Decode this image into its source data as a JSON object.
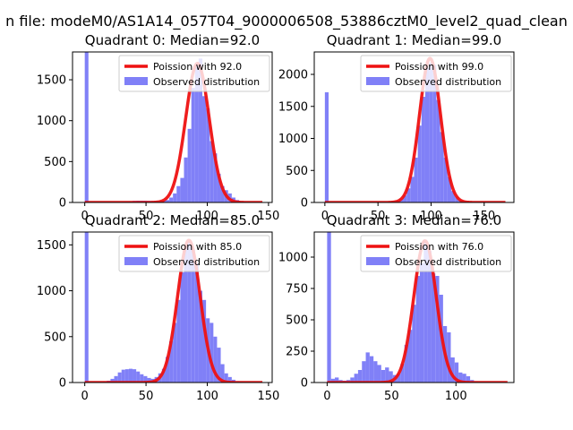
{
  "suptitle": "n file: modeM0/AS1A14_057T04_9000006508_53886cztM0_level2_quad_clean",
  "colors": {
    "hist": "#8080f7",
    "fit": "#ee1111",
    "axis": "#000000"
  },
  "chart_data": [
    {
      "type": "bar",
      "title": "Quadrant 0: Median=92.0",
      "median": 92.0,
      "xlim": [
        -10,
        153
      ],
      "ylim": [
        0,
        1840
      ],
      "xticks": [
        0,
        50,
        100,
        150
      ],
      "yticks": [
        0,
        500,
        1000,
        1500
      ],
      "bin_width": 3,
      "bins": [
        {
          "x": 0,
          "y": 1840
        },
        {
          "x": 3,
          "y": 3
        },
        {
          "x": 6,
          "y": 3
        },
        {
          "x": 9,
          "y": 3
        },
        {
          "x": 12,
          "y": 3
        },
        {
          "x": 15,
          "y": 4
        },
        {
          "x": 18,
          "y": 4
        },
        {
          "x": 21,
          "y": 4
        },
        {
          "x": 24,
          "y": 5
        },
        {
          "x": 27,
          "y": 6
        },
        {
          "x": 30,
          "y": 8
        },
        {
          "x": 33,
          "y": 12
        },
        {
          "x": 36,
          "y": 15
        },
        {
          "x": 39,
          "y": 20
        },
        {
          "x": 42,
          "y": 22
        },
        {
          "x": 45,
          "y": 22
        },
        {
          "x": 48,
          "y": 22
        },
        {
          "x": 51,
          "y": 20
        },
        {
          "x": 54,
          "y": 18
        },
        {
          "x": 57,
          "y": 15
        },
        {
          "x": 60,
          "y": 15
        },
        {
          "x": 63,
          "y": 20
        },
        {
          "x": 66,
          "y": 30
        },
        {
          "x": 69,
          "y": 60
        },
        {
          "x": 72,
          "y": 110
        },
        {
          "x": 75,
          "y": 200
        },
        {
          "x": 78,
          "y": 300
        },
        {
          "x": 81,
          "y": 550
        },
        {
          "x": 84,
          "y": 900
        },
        {
          "x": 87,
          "y": 1400
        },
        {
          "x": 90,
          "y": 1700
        },
        {
          "x": 93,
          "y": 1760
        },
        {
          "x": 96,
          "y": 1300
        },
        {
          "x": 99,
          "y": 1150
        },
        {
          "x": 102,
          "y": 750
        },
        {
          "x": 105,
          "y": 600
        },
        {
          "x": 108,
          "y": 350
        },
        {
          "x": 111,
          "y": 200
        },
        {
          "x": 114,
          "y": 150
        },
        {
          "x": 117,
          "y": 110
        },
        {
          "x": 120,
          "y": 60
        },
        {
          "x": 123,
          "y": 30
        },
        {
          "x": 126,
          "y": 15
        },
        {
          "x": 129,
          "y": 10
        },
        {
          "x": 132,
          "y": 5
        },
        {
          "x": 135,
          "y": 4
        },
        {
          "x": 138,
          "y": 3
        },
        {
          "x": 141,
          "y": 2
        },
        {
          "x": 144,
          "y": 2
        }
      ],
      "fit": {
        "mean": 92.0,
        "amplitude": 1700,
        "x_range": [
          0,
          145
        ]
      },
      "legend": {
        "location": "upper right",
        "entries": [
          "Poission with 92.0",
          "Observed distribution"
        ]
      }
    },
    {
      "type": "bar",
      "title": "Quadrant 1: Median=99.0",
      "median": 99.0,
      "xlim": [
        -10,
        178
      ],
      "ylim": [
        0,
        2350
      ],
      "xticks": [
        0,
        50,
        100,
        150
      ],
      "yticks": [
        0,
        500,
        1000,
        1500,
        2000
      ],
      "bin_width": 3.5,
      "bins": [
        {
          "x": 0,
          "y": 1720
        },
        {
          "x": 3.5,
          "y": 3
        },
        {
          "x": 7,
          "y": 3
        },
        {
          "x": 10.5,
          "y": 3
        },
        {
          "x": 14,
          "y": 3
        },
        {
          "x": 17.5,
          "y": 3
        },
        {
          "x": 21,
          "y": 4
        },
        {
          "x": 24.5,
          "y": 4
        },
        {
          "x": 28,
          "y": 4
        },
        {
          "x": 31.5,
          "y": 4
        },
        {
          "x": 35,
          "y": 5
        },
        {
          "x": 38.5,
          "y": 5
        },
        {
          "x": 42,
          "y": 5
        },
        {
          "x": 45.5,
          "y": 6
        },
        {
          "x": 49,
          "y": 6
        },
        {
          "x": 52.5,
          "y": 6
        },
        {
          "x": 56,
          "y": 8
        },
        {
          "x": 59.5,
          "y": 10
        },
        {
          "x": 63,
          "y": 15
        },
        {
          "x": 66.5,
          "y": 25
        },
        {
          "x": 70,
          "y": 50
        },
        {
          "x": 73.5,
          "y": 110
        },
        {
          "x": 77,
          "y": 220
        },
        {
          "x": 80.5,
          "y": 400
        },
        {
          "x": 84,
          "y": 700
        },
        {
          "x": 87.5,
          "y": 1200
        },
        {
          "x": 91,
          "y": 1650
        },
        {
          "x": 94.5,
          "y": 2100
        },
        {
          "x": 98,
          "y": 2180
        },
        {
          "x": 101.5,
          "y": 2150
        },
        {
          "x": 105,
          "y": 1600
        },
        {
          "x": 108.5,
          "y": 1100
        },
        {
          "x": 112,
          "y": 700
        },
        {
          "x": 115.5,
          "y": 400
        },
        {
          "x": 119,
          "y": 180
        },
        {
          "x": 122.5,
          "y": 90
        },
        {
          "x": 126,
          "y": 40
        },
        {
          "x": 129.5,
          "y": 20
        },
        {
          "x": 133,
          "y": 10
        },
        {
          "x": 136.5,
          "y": 6
        },
        {
          "x": 140,
          "y": 4
        },
        {
          "x": 143.5,
          "y": 3
        },
        {
          "x": 147,
          "y": 3
        },
        {
          "x": 150.5,
          "y": 2
        },
        {
          "x": 154,
          "y": 2
        },
        {
          "x": 157.5,
          "y": 2
        },
        {
          "x": 161,
          "y": 2
        },
        {
          "x": 164.5,
          "y": 2
        }
      ],
      "fit": {
        "mean": 99.0,
        "amplitude": 2250,
        "x_range": [
          0,
          170
        ]
      },
      "legend": {
        "location": "upper right",
        "entries": [
          "Poission with 99.0",
          "Observed distribution"
        ]
      }
    },
    {
      "type": "bar",
      "title": "Quadrant 2: Median=85.0",
      "median": 85.0,
      "xlim": [
        -10,
        153
      ],
      "ylim": [
        0,
        1640
      ],
      "xticks": [
        0,
        50,
        100,
        150
      ],
      "yticks": [
        0,
        500,
        1000,
        1500
      ],
      "bin_width": 3,
      "bins": [
        {
          "x": 0,
          "y": 1640
        },
        {
          "x": 3,
          "y": 3
        },
        {
          "x": 6,
          "y": 3
        },
        {
          "x": 9,
          "y": 3
        },
        {
          "x": 12,
          "y": 5
        },
        {
          "x": 15,
          "y": 10
        },
        {
          "x": 18,
          "y": 20
        },
        {
          "x": 21,
          "y": 40
        },
        {
          "x": 24,
          "y": 70
        },
        {
          "x": 27,
          "y": 110
        },
        {
          "x": 30,
          "y": 140
        },
        {
          "x": 33,
          "y": 145
        },
        {
          "x": 36,
          "y": 150
        },
        {
          "x": 39,
          "y": 145
        },
        {
          "x": 42,
          "y": 120
        },
        {
          "x": 45,
          "y": 90
        },
        {
          "x": 48,
          "y": 70
        },
        {
          "x": 51,
          "y": 50
        },
        {
          "x": 54,
          "y": 40
        },
        {
          "x": 57,
          "y": 60
        },
        {
          "x": 60,
          "y": 100
        },
        {
          "x": 63,
          "y": 150
        },
        {
          "x": 66,
          "y": 280
        },
        {
          "x": 69,
          "y": 450
        },
        {
          "x": 72,
          "y": 650
        },
        {
          "x": 75,
          "y": 900
        },
        {
          "x": 78,
          "y": 1200
        },
        {
          "x": 81,
          "y": 1500
        },
        {
          "x": 84,
          "y": 1550
        },
        {
          "x": 87,
          "y": 1450
        },
        {
          "x": 90,
          "y": 1300
        },
        {
          "x": 93,
          "y": 1000
        },
        {
          "x": 96,
          "y": 900
        },
        {
          "x": 99,
          "y": 700
        },
        {
          "x": 102,
          "y": 650
        },
        {
          "x": 105,
          "y": 500
        },
        {
          "x": 108,
          "y": 380
        },
        {
          "x": 111,
          "y": 200
        },
        {
          "x": 114,
          "y": 100
        },
        {
          "x": 117,
          "y": 60
        },
        {
          "x": 120,
          "y": 30
        },
        {
          "x": 123,
          "y": 15
        },
        {
          "x": 126,
          "y": 10
        },
        {
          "x": 129,
          "y": 5
        },
        {
          "x": 132,
          "y": 3
        },
        {
          "x": 135,
          "y": 2
        },
        {
          "x": 138,
          "y": 2
        },
        {
          "x": 141,
          "y": 2
        }
      ],
      "fit": {
        "mean": 85.0,
        "amplitude": 1550,
        "x_range": [
          0,
          145
        ]
      },
      "legend": {
        "location": "upper right",
        "entries": [
          "Poission with 85.0",
          "Observed distribution"
        ]
      }
    },
    {
      "type": "bar",
      "title": "Quadrant 3: Median=76.0",
      "median": 76.0,
      "xlim": [
        -10,
        145
      ],
      "ylim": [
        0,
        1200
      ],
      "xticks": [
        0,
        50,
        100
      ],
      "yticks": [
        0,
        250,
        500,
        750,
        1000
      ],
      "bin_width": 3,
      "bins": [
        {
          "x": 0,
          "y": 1200
        },
        {
          "x": 3,
          "y": 30
        },
        {
          "x": 6,
          "y": 40
        },
        {
          "x": 9,
          "y": 20
        },
        {
          "x": 12,
          "y": 15
        },
        {
          "x": 15,
          "y": 20
        },
        {
          "x": 18,
          "y": 40
        },
        {
          "x": 21,
          "y": 70
        },
        {
          "x": 24,
          "y": 100
        },
        {
          "x": 27,
          "y": 170
        },
        {
          "x": 30,
          "y": 240
        },
        {
          "x": 33,
          "y": 210
        },
        {
          "x": 36,
          "y": 170
        },
        {
          "x": 39,
          "y": 140
        },
        {
          "x": 42,
          "y": 100
        },
        {
          "x": 45,
          "y": 120
        },
        {
          "x": 48,
          "y": 90
        },
        {
          "x": 51,
          "y": 60
        },
        {
          "x": 54,
          "y": 70
        },
        {
          "x": 57,
          "y": 150
        },
        {
          "x": 60,
          "y": 300
        },
        {
          "x": 63,
          "y": 420
        },
        {
          "x": 66,
          "y": 620
        },
        {
          "x": 69,
          "y": 850
        },
        {
          "x": 72,
          "y": 950
        },
        {
          "x": 75,
          "y": 1130
        },
        {
          "x": 78,
          "y": 1050
        },
        {
          "x": 81,
          "y": 870
        },
        {
          "x": 84,
          "y": 850
        },
        {
          "x": 87,
          "y": 700
        },
        {
          "x": 90,
          "y": 450
        },
        {
          "x": 93,
          "y": 400
        },
        {
          "x": 96,
          "y": 200
        },
        {
          "x": 99,
          "y": 160
        },
        {
          "x": 102,
          "y": 80
        },
        {
          "x": 105,
          "y": 70
        },
        {
          "x": 108,
          "y": 50
        },
        {
          "x": 111,
          "y": 20
        },
        {
          "x": 114,
          "y": 10
        },
        {
          "x": 117,
          "y": 5
        },
        {
          "x": 120,
          "y": 3
        },
        {
          "x": 123,
          "y": 2
        },
        {
          "x": 126,
          "y": 2
        },
        {
          "x": 129,
          "y": 2
        },
        {
          "x": 132,
          "y": 2
        }
      ],
      "fit": {
        "mean": 76.0,
        "amplitude": 1130,
        "x_range": [
          0,
          140
        ]
      },
      "legend": {
        "location": "upper right",
        "entries": [
          "Poission with 76.0",
          "Observed distribution"
        ]
      }
    }
  ]
}
